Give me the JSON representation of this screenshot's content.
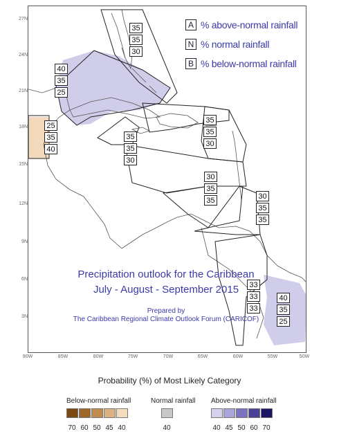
{
  "legend": {
    "items": [
      {
        "key": "A",
        "text": "% above-normal rainfall"
      },
      {
        "key": "N",
        "text": "% normal rainfall"
      },
      {
        "key": "B",
        "text": "% below-normal rainfall"
      }
    ]
  },
  "lat_labels": [
    "27N",
    "24N",
    "21N",
    "18N",
    "15N",
    "12N",
    "9N",
    "6N",
    "3N"
  ],
  "lon_labels": [
    "90W",
    "85W",
    "80W",
    "75W",
    "70W",
    "65W",
    "60W",
    "55W",
    "50W"
  ],
  "probabilities": [
    {
      "region": "bahamas",
      "values": [
        "35",
        "35",
        "30"
      ]
    },
    {
      "region": "cuba",
      "values": [
        "40",
        "35",
        "25"
      ]
    },
    {
      "region": "belize",
      "values": [
        "25",
        "35",
        "40"
      ]
    },
    {
      "region": "jamaica",
      "values": [
        "35",
        "35",
        "30"
      ]
    },
    {
      "region": "northern-leewards",
      "values": [
        "35",
        "35",
        "30"
      ]
    },
    {
      "region": "windwards",
      "values": [
        "30",
        "35",
        "35"
      ]
    },
    {
      "region": "barbados",
      "values": [
        "30",
        "35",
        "35"
      ]
    },
    {
      "region": "guyana",
      "values": [
        "33",
        "33",
        "33"
      ]
    },
    {
      "region": "suriname",
      "values": [
        "40",
        "35",
        "25"
      ]
    }
  ],
  "title": {
    "line1": "Precipitation outlook for the Caribbean",
    "line2": "July - August - September 2015",
    "line3": "Prepared by",
    "line4": "The Caribbean Regional Climate Outlook Forum (CARICOF)"
  },
  "colorbar": {
    "title": "Probability (%) of Most Likely Category",
    "below_label": "Below-normal rainfall",
    "normal_label": "Normal rainfall",
    "above_label": "Above-normal rainfall",
    "below_ticks": [
      "70",
      "60",
      "50",
      "45",
      "40"
    ],
    "normal_ticks": [
      "40"
    ],
    "above_ticks": [
      "40",
      "45",
      "50",
      "60",
      "70"
    ],
    "below_colors": [
      "#7a4a12",
      "#a0672a",
      "#c08c4e",
      "#dcb283",
      "#f3dcc0"
    ],
    "normal_colors": [
      "#c8c8c8"
    ],
    "above_colors": [
      "#d4d2ef",
      "#aaa6dc",
      "#7a74c0",
      "#4a4299",
      "#1c1563"
    ]
  },
  "colors": {
    "above_shade": "#cfcdea",
    "below_shade": "#f3d9bb",
    "text_blue": "#3a3aa8"
  }
}
